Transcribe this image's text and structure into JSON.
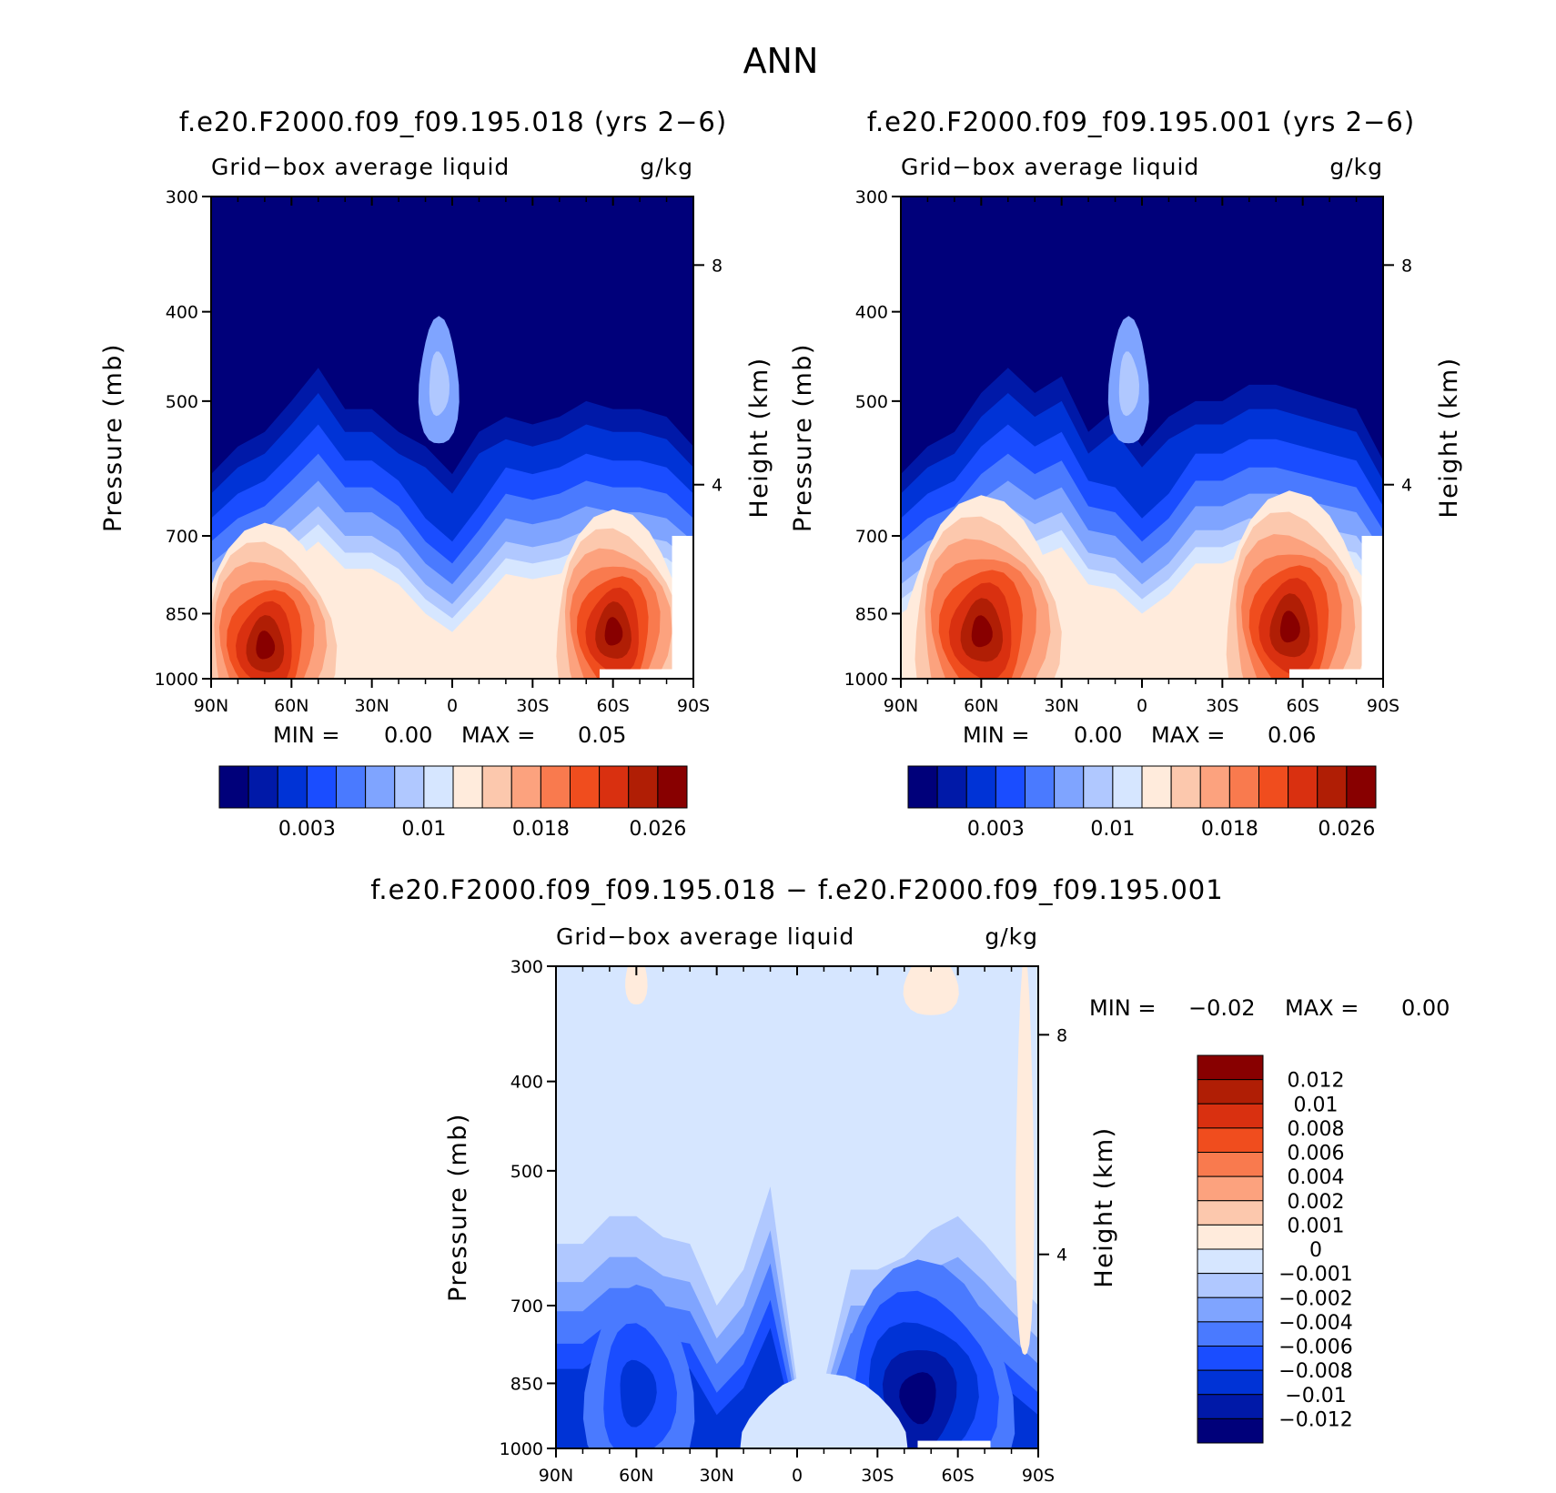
{
  "chart_data": {
    "type": "contour",
    "title": "ANN",
    "palette": {
      "absolute": [
        "#00007a",
        "#0019a8",
        "#0033d6",
        "#1a4dff",
        "#4a7aff",
        "#7fa4ff",
        "#b0c8ff",
        "#d6e6ff",
        "#ffebdc",
        "#fcc8ad",
        "#fca27e",
        "#f97a4e",
        "#f04d1e",
        "#d93010",
        "#b01e05",
        "#880000"
      ],
      "difference": [
        "#00007a",
        "#0019a8",
        "#0033d6",
        "#1a4dff",
        "#4a7aff",
        "#7fa4ff",
        "#b0c8ff",
        "#d6e6ff",
        "#ffebdc",
        "#fcc8ad",
        "#fca27e",
        "#f97a4e",
        "#f04d1e",
        "#d93010",
        "#b01e05",
        "#880000"
      ]
    },
    "panels": [
      {
        "id": "case",
        "title": "f.e20.F2000.f09_f09.195.018 (yrs 2−6)",
        "left_label": "Grid−box average liquid",
        "right_label": "g/kg",
        "ylabel": "Pressure (mb)",
        "y2label": "Height (km)",
        "yticks": [
          "300",
          "400",
          "500",
          "700",
          "850",
          "1000"
        ],
        "y2ticks": [
          "8",
          "4"
        ],
        "xticks": [
          "90N",
          "60N",
          "30N",
          "0",
          "30S",
          "60S",
          "90S"
        ],
        "min_label": "MIN =",
        "min_value": "0.00",
        "max_label": "MAX =",
        "max_value": "0.05",
        "colorbar_labels": [
          "0.003",
          "0.01",
          "0.018",
          "0.026"
        ]
      },
      {
        "id": "control",
        "title": "f.e20.F2000.f09_f09.195.001 (yrs 2−6)",
        "left_label": "Grid−box average liquid",
        "right_label": "g/kg",
        "ylabel": "Pressure (mb)",
        "y2label": "Height (km)",
        "yticks": [
          "300",
          "400",
          "500",
          "700",
          "850",
          "1000"
        ],
        "y2ticks": [
          "8",
          "4"
        ],
        "xticks": [
          "90N",
          "60N",
          "30N",
          "0",
          "30S",
          "60S",
          "90S"
        ],
        "min_label": "MIN =",
        "min_value": "0.00",
        "max_label": "MAX =",
        "max_value": "0.06",
        "colorbar_labels": [
          "0.003",
          "0.01",
          "0.018",
          "0.026"
        ]
      },
      {
        "id": "diff",
        "title": "f.e20.F2000.f09_f09.195.018 − f.e20.F2000.f09_f09.195.001",
        "left_label": "Grid−box average liquid",
        "right_label": "g/kg",
        "ylabel": "Pressure (mb)",
        "y2label": "Height (km)",
        "yticks": [
          "300",
          "400",
          "500",
          "700",
          "850",
          "1000"
        ],
        "y2ticks": [
          "8",
          "4"
        ],
        "xticks": [
          "90N",
          "60N",
          "30N",
          "0",
          "30S",
          "60S",
          "90S"
        ],
        "min_label": "MIN =",
        "min_value": "−0.02",
        "max_label": "MAX =",
        "max_value": "0.00",
        "colorbar_labels": [
          "0.012",
          "0.01",
          "0.008",
          "0.006",
          "0.004",
          "0.002",
          "0.001",
          "0",
          "−0.001",
          "−0.002",
          "−0.004",
          "−0.006",
          "−0.008",
          "−0.01",
          "−0.012"
        ]
      }
    ],
    "contour_levels_absolute": [
      0.001,
      0.002,
      0.003,
      0.005,
      0.007,
      0.009,
      0.01,
      0.012,
      0.014,
      0.016,
      0.018,
      0.02,
      0.022,
      0.024,
      0.026
    ],
    "contour_levels_difference": [
      -0.012,
      -0.01,
      -0.008,
      -0.006,
      -0.004,
      -0.002,
      -0.001,
      0,
      0.001,
      0.002,
      0.004,
      0.006,
      0.008,
      0.01,
      0.012
    ],
    "maxima": [
      {
        "panel": "case",
        "lat": "60S",
        "pressure_mb": 870,
        "level_index": 15
      },
      {
        "panel": "case",
        "lat": "70N",
        "pressure_mb": 900,
        "level_index": 15
      },
      {
        "panel": "control",
        "lat": "60N",
        "pressure_mb": 870,
        "level_index": 15
      },
      {
        "panel": "control",
        "lat": "55S",
        "pressure_mb": 860,
        "level_index": 15
      },
      {
        "panel": "diff",
        "lat": "45S",
        "pressure_mb": 860,
        "level_index": 0
      },
      {
        "panel": "diff",
        "lat": "60N",
        "pressure_mb": 870,
        "level_index": 2
      }
    ]
  }
}
